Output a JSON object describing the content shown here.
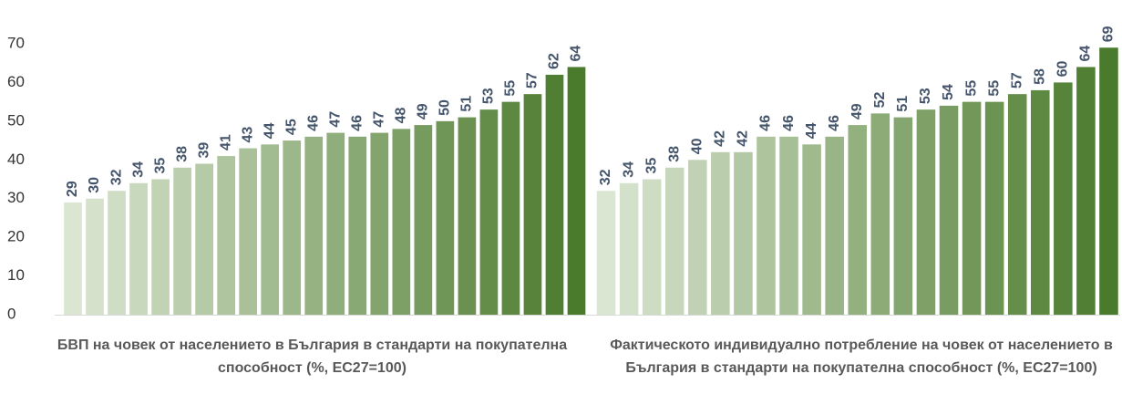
{
  "chart_data": {
    "type": "bar",
    "categories": [
      "БВП на човек от населението в България в стандарти на покупателна способност (%, ЕС27=100)",
      "Фактическото индивидуално потребление на човек от населението в България в стандарти на покупателна способност (%, ЕС27=100)"
    ],
    "groups": [
      {
        "values": [
          29,
          30,
          32,
          34,
          35,
          38,
          39,
          41,
          43,
          44,
          45,
          46,
          47,
          46,
          47,
          48,
          49,
          50,
          51,
          53,
          55,
          57,
          62,
          64
        ]
      },
      {
        "values": [
          32,
          34,
          35,
          38,
          40,
          42,
          42,
          46,
          46,
          44,
          46,
          49,
          52,
          51,
          53,
          54,
          55,
          55,
          57,
          58,
          60,
          64,
          69
        ]
      }
    ],
    "color_gradient": [
      "#dbe6d2",
      "#4a7a2c"
    ],
    "ylim": [
      0,
      70
    ],
    "yticks": [
      0,
      10,
      20,
      30,
      40,
      50,
      60,
      70
    ],
    "grid": false
  }
}
